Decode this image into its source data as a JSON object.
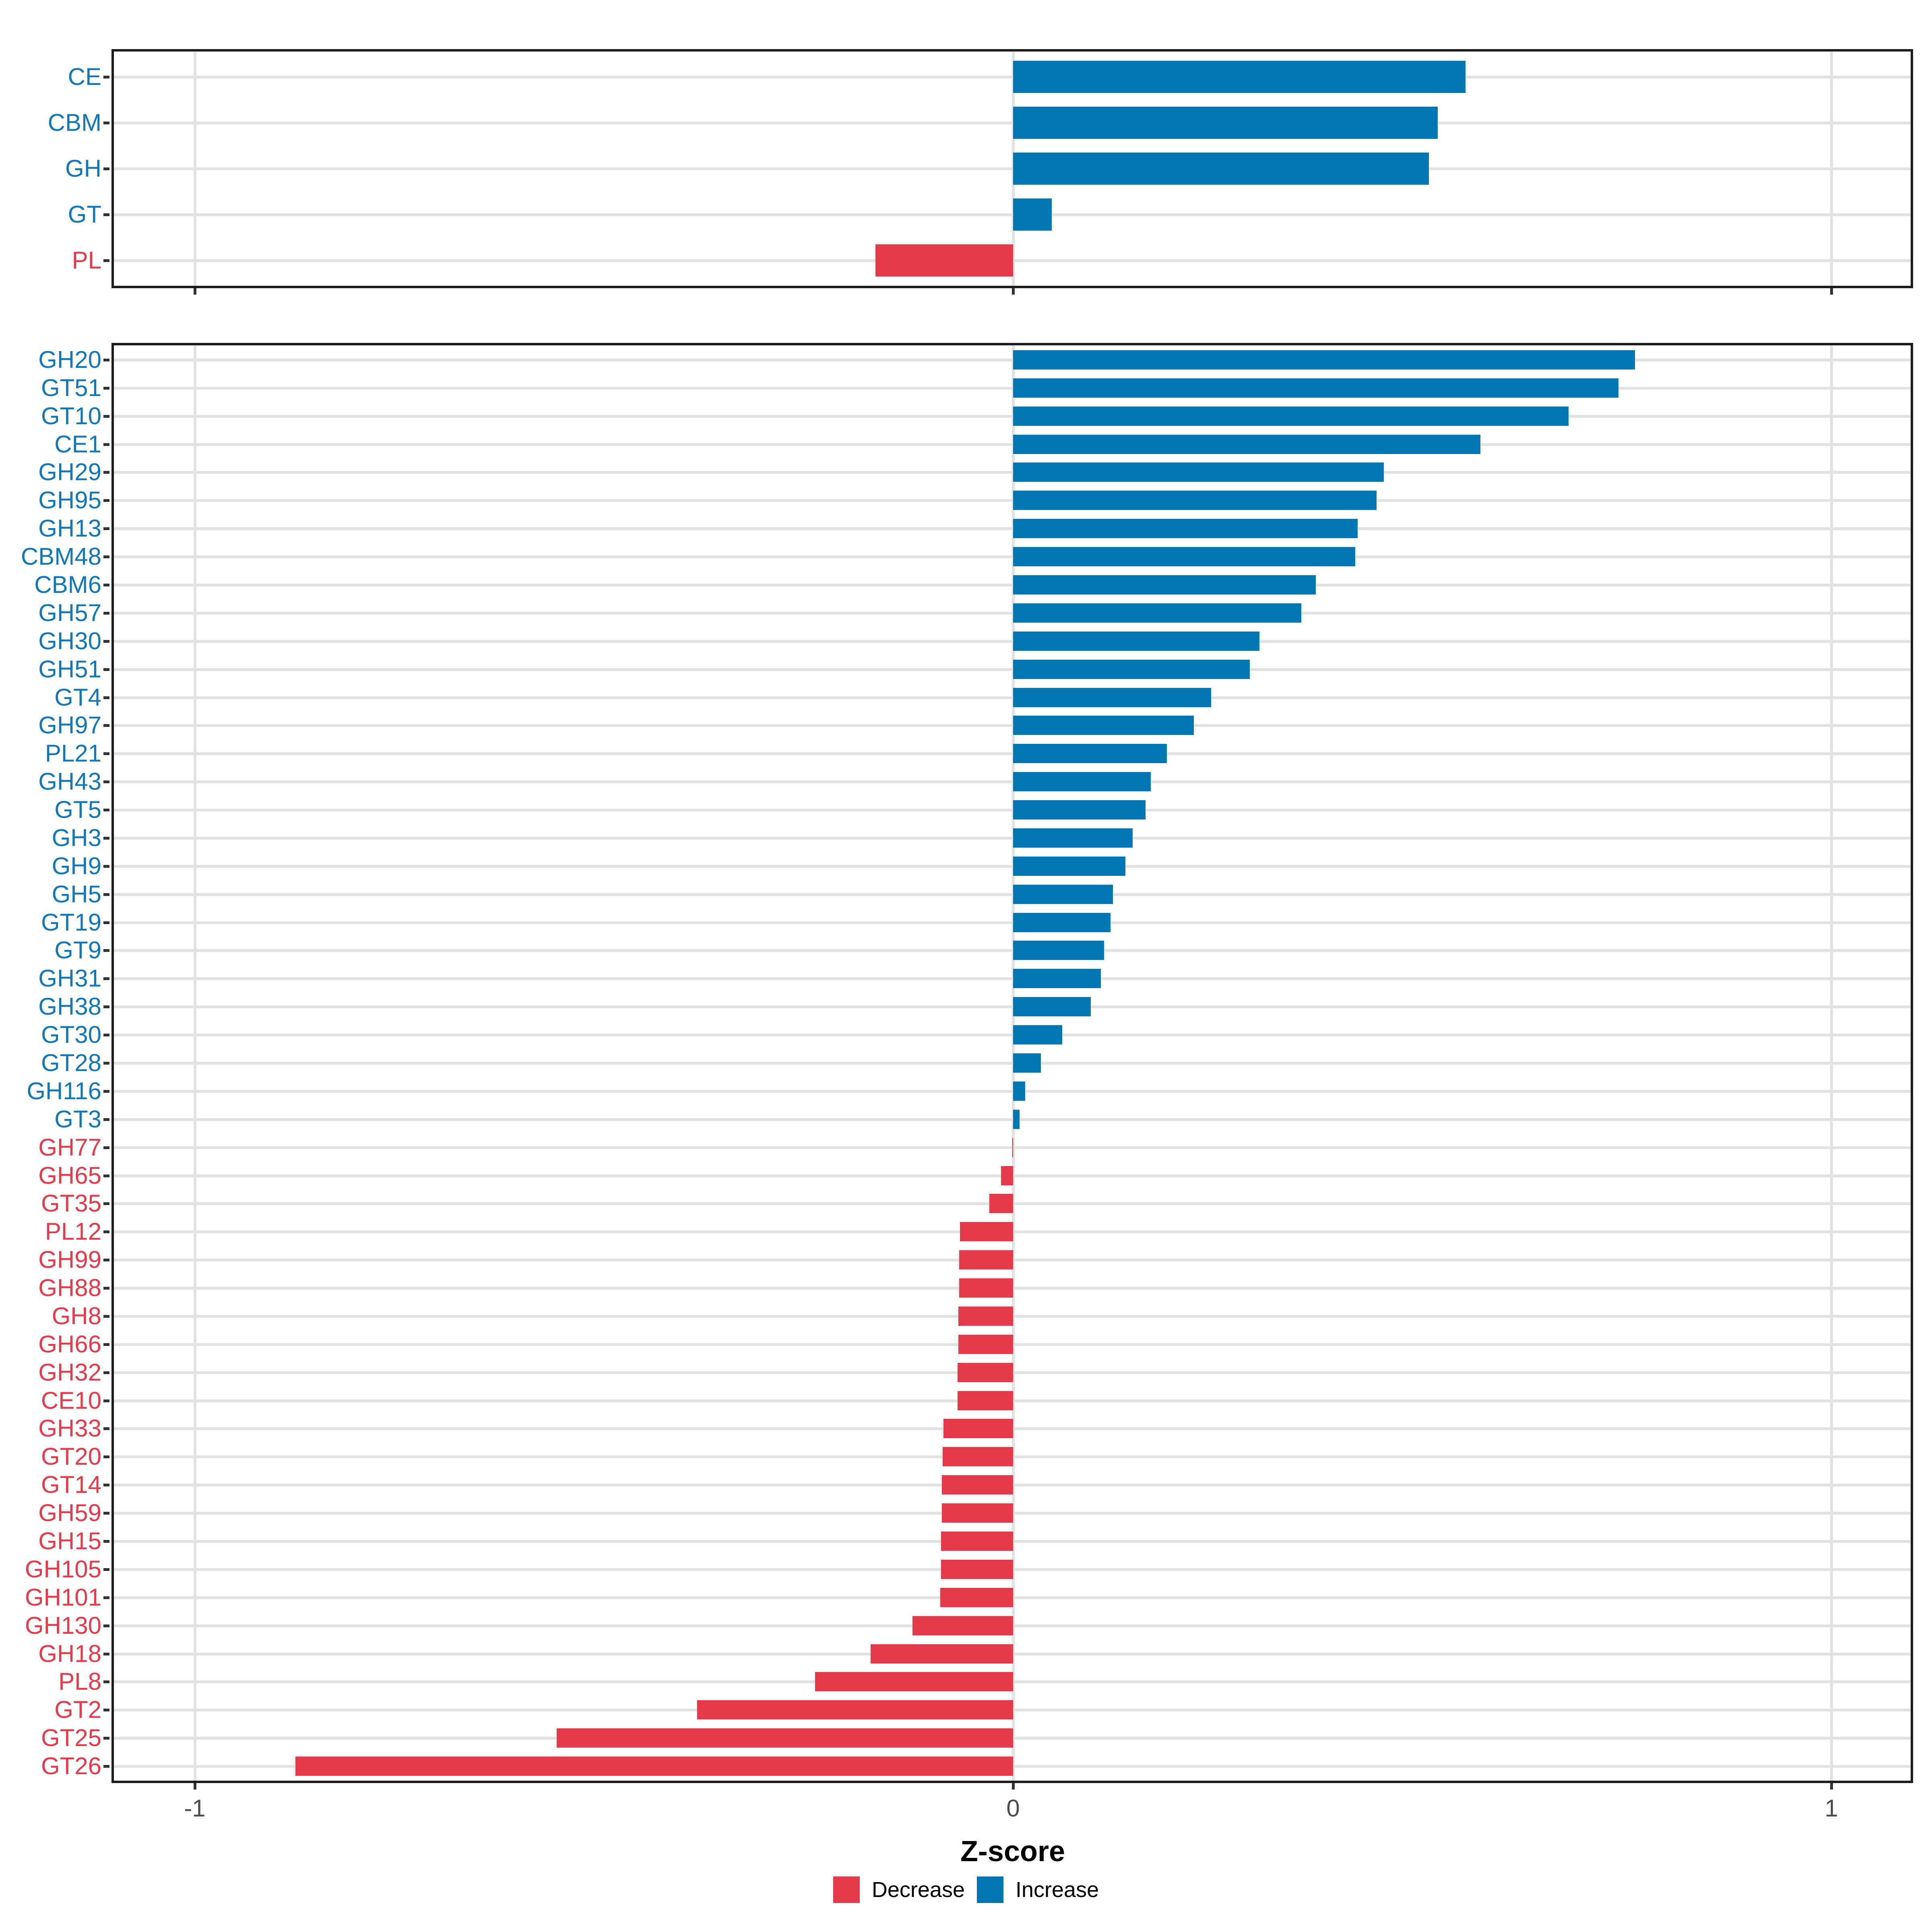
{
  "axis": {
    "title": "Z-score",
    "ticks": [
      {
        "label": "-1",
        "value": -1
      },
      {
        "label": "0",
        "value": 0
      },
      {
        "label": "1",
        "value": 1
      }
    ],
    "range": [
      -1.1,
      1.1
    ]
  },
  "legend": {
    "items": [
      {
        "label": "Decrease",
        "color": "#e6394a"
      },
      {
        "label": "Increase",
        "color": "#0076b4"
      }
    ]
  },
  "colors": {
    "increase_bar": "#0076b4",
    "decrease_bar": "#e6394a",
    "increase_label": "#1177b8",
    "decrease_label": "#e6394a",
    "gridline": "#e2e2e2",
    "panel_border": "#1c1c1c",
    "tick": "#333333",
    "tick_label": "#4d4d4d",
    "background": "#ffffff"
  },
  "chart_data": [
    {
      "type": "bar",
      "orientation": "horizontal",
      "panel": "cazyme-classes",
      "title": "",
      "xlabel": "Z-score",
      "xlim": [
        -1.1,
        1.1
      ],
      "grid": true,
      "legend_position": "bottom",
      "categories": [
        "CE",
        "CBM",
        "GH",
        "GT",
        "PL"
      ],
      "values": [
        0.553,
        0.519,
        0.508,
        0.047,
        -0.168
      ]
    },
    {
      "type": "bar",
      "orientation": "horizontal",
      "panel": "cazyme-families",
      "title": "",
      "xlabel": "Z-score",
      "xlim": [
        -1.1,
        1.1
      ],
      "grid": true,
      "legend_position": "bottom",
      "categories": [
        "GH20",
        "GT51",
        "GT10",
        "CE1",
        "GH29",
        "GH95",
        "GH13",
        "CBM48",
        "CBM6",
        "GH57",
        "GH30",
        "GH51",
        "GT4",
        "GH97",
        "PL21",
        "GH43",
        "GT5",
        "GH3",
        "GH9",
        "GH5",
        "GT19",
        "GT9",
        "GH31",
        "GH38",
        "GT30",
        "GT28",
        "GH116",
        "GT3",
        "GH77",
        "GH65",
        "GT35",
        "PL12",
        "GH99",
        "GH88",
        "GH8",
        "GH66",
        "GH32",
        "CE10",
        "GH33",
        "GT20",
        "GT14",
        "GH59",
        "GH15",
        "GH105",
        "GH101",
        "GH130",
        "GH18",
        "PL8",
        "GT2",
        "GT25",
        "GT26"
      ],
      "values": [
        0.76,
        0.74,
        0.679,
        0.571,
        0.453,
        0.444,
        0.421,
        0.418,
        0.37,
        0.352,
        0.301,
        0.289,
        0.242,
        0.221,
        0.188,
        0.168,
        0.162,
        0.146,
        0.137,
        0.122,
        0.119,
        0.111,
        0.107,
        0.095,
        0.06,
        0.034,
        0.015,
        0.008,
        -0.001,
        -0.015,
        -0.029,
        -0.065,
        -0.066,
        -0.066,
        -0.067,
        -0.067,
        -0.068,
        -0.068,
        -0.085,
        -0.086,
        -0.087,
        -0.087,
        -0.088,
        -0.088,
        -0.089,
        -0.123,
        -0.174,
        -0.242,
        -0.386,
        -0.558,
        -0.877
      ]
    }
  ]
}
